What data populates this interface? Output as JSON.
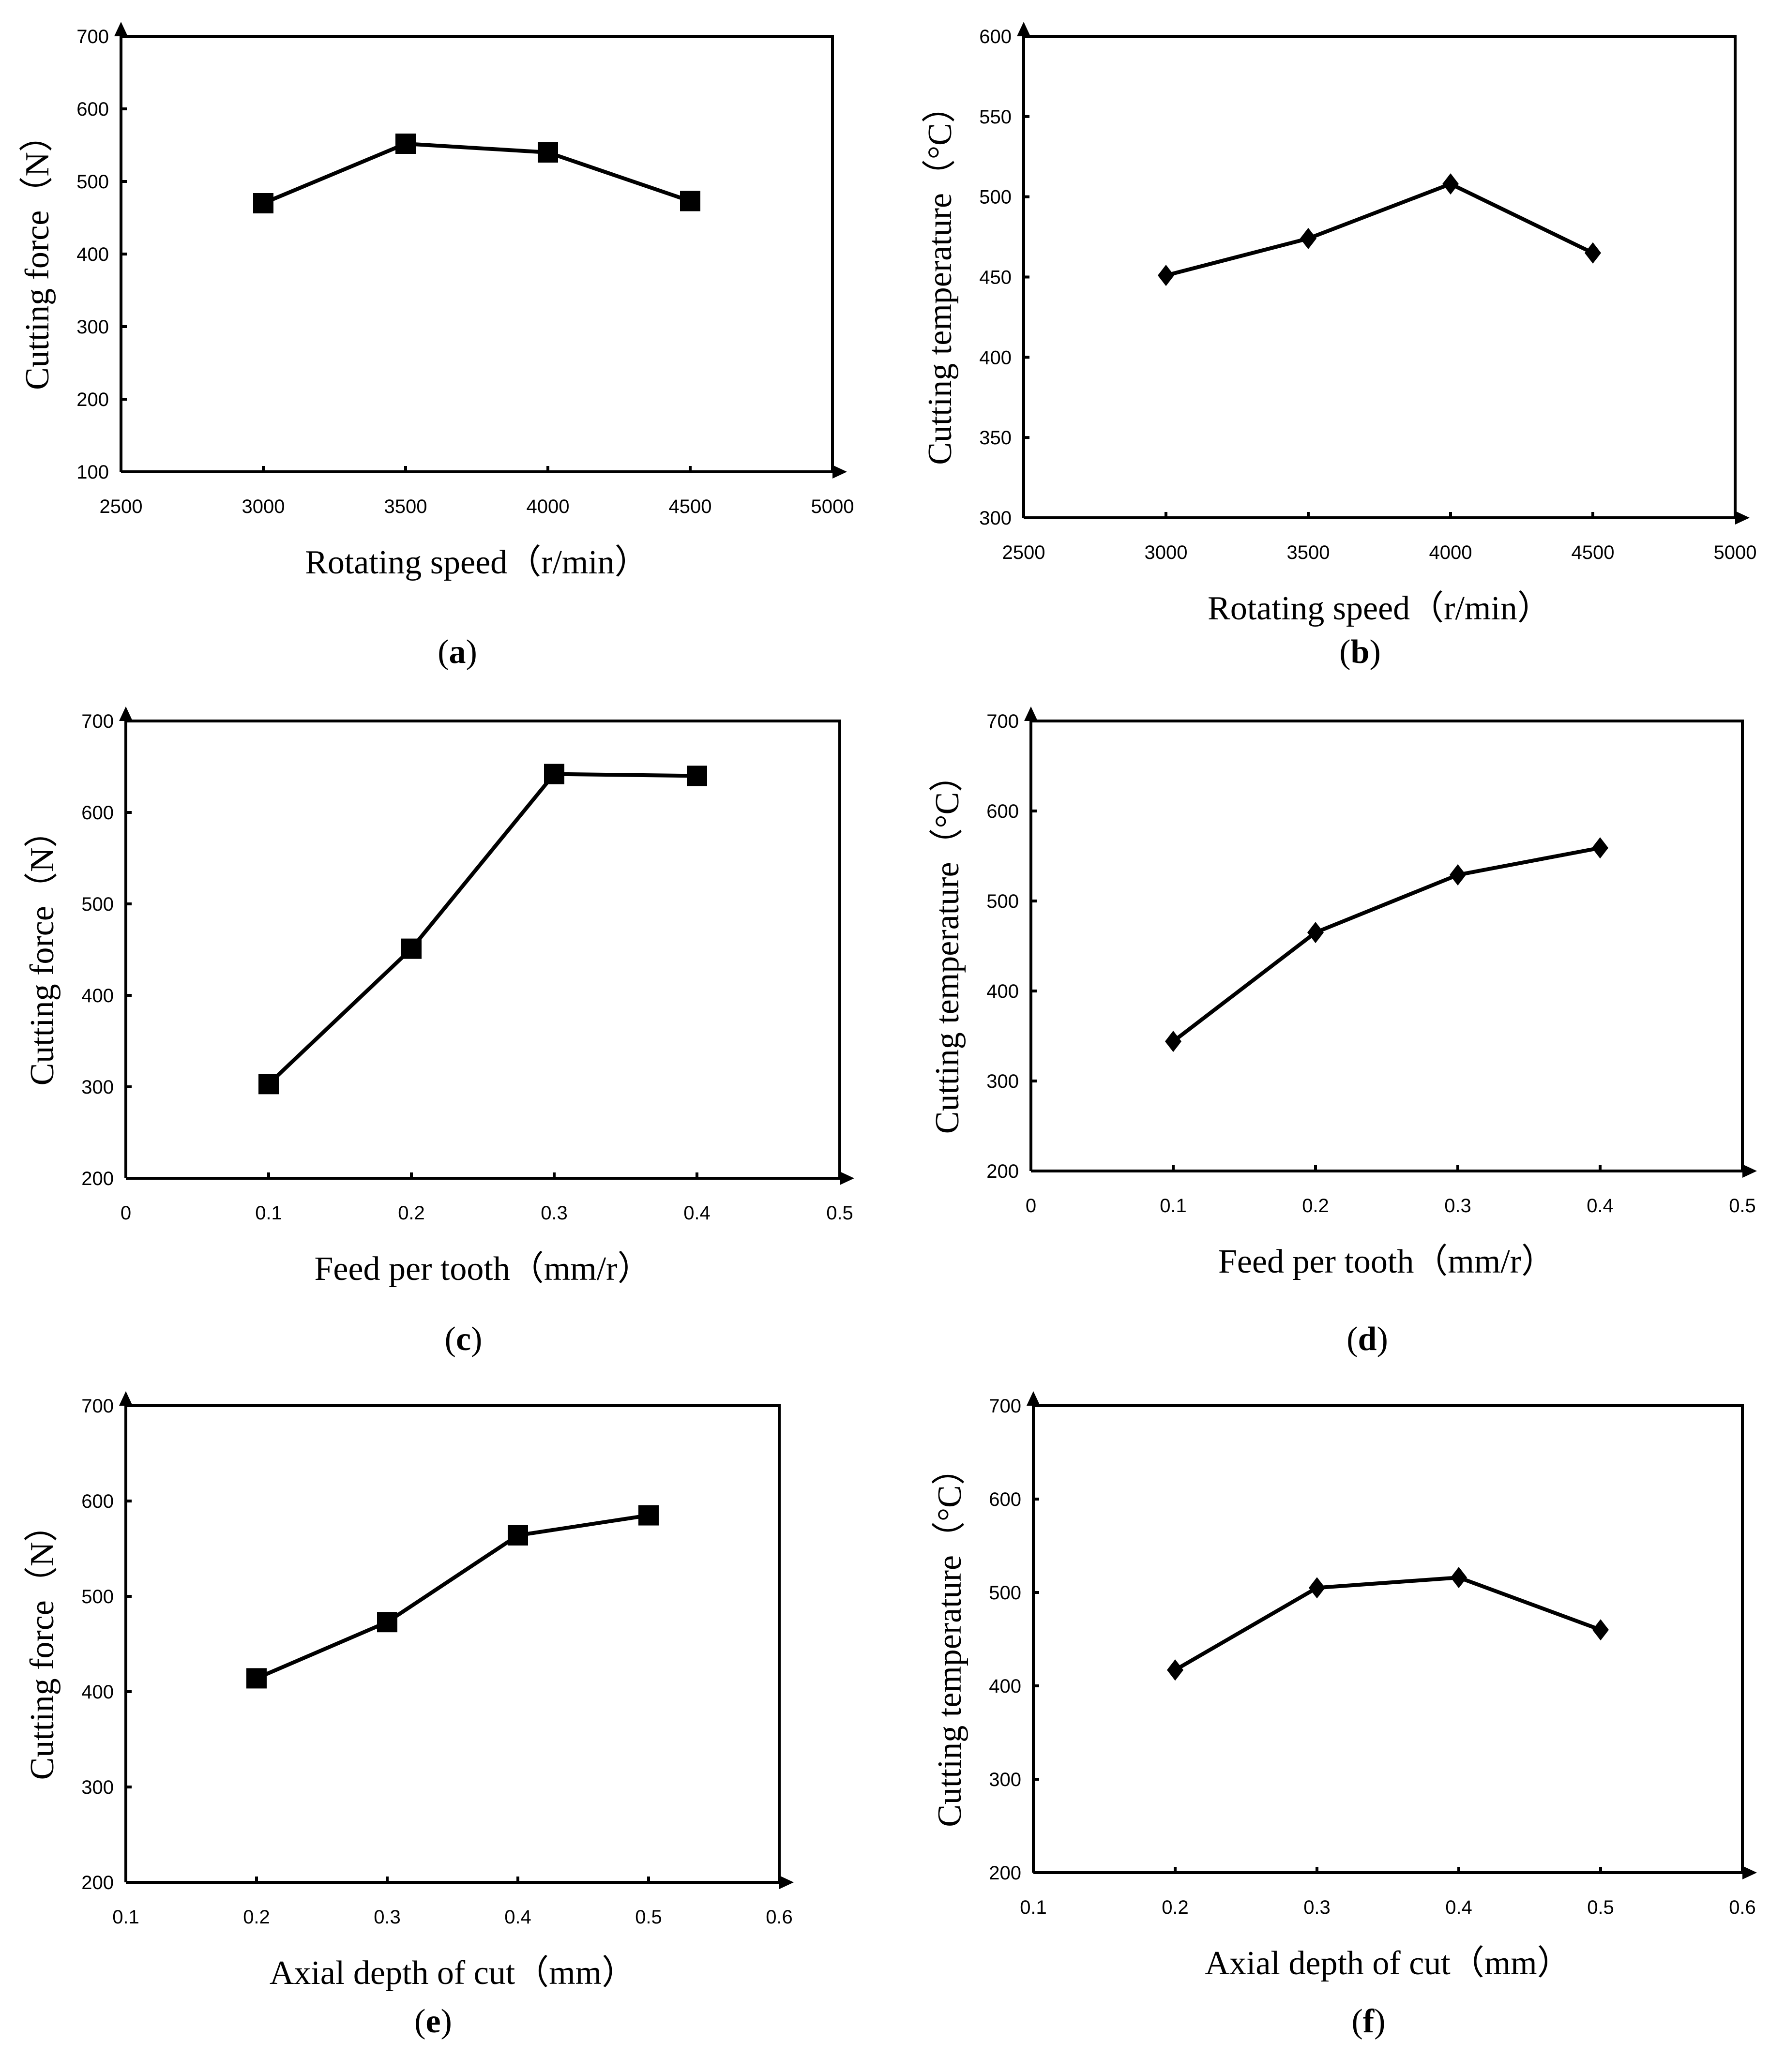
{
  "chart_data": [
    {
      "id": "a",
      "type": "line",
      "marker": "square",
      "panel_label": "a",
      "xlabel": "Rotating speed（r/min）",
      "ylabel": "Cutting force（N）",
      "xlim": [
        2500,
        5000
      ],
      "ylim": [
        100,
        700
      ],
      "x_ticks": [
        "2500",
        "3000",
        "3500",
        "4000",
        "4500",
        "5000"
      ],
      "y_ticks": [
        "100",
        "200",
        "300",
        "400",
        "500",
        "600",
        "700"
      ],
      "x": [
        3000,
        3500,
        4000,
        4500
      ],
      "values": [
        470,
        552,
        540,
        473
      ]
    },
    {
      "id": "b",
      "type": "line",
      "marker": "diamond",
      "panel_label": "b",
      "xlabel": "Rotating speed（r/min）",
      "ylabel": "Cutting temperature（°C）",
      "xlim": [
        2500,
        5000
      ],
      "ylim": [
        300,
        600
      ],
      "x_ticks": [
        "2500",
        "3000",
        "3500",
        "4000",
        "4500",
        "5000"
      ],
      "y_ticks": [
        "300",
        "350",
        "400",
        "450",
        "500",
        "550",
        "600"
      ],
      "x": [
        3000,
        3500,
        4000,
        4500
      ],
      "values": [
        451,
        474,
        508,
        465
      ]
    },
    {
      "id": "c",
      "type": "line",
      "marker": "square",
      "panel_label": "c",
      "xlabel": "Feed per tooth（mm/r）",
      "ylabel": "Cutting force（N）",
      "xlim": [
        0,
        0.5
      ],
      "ylim": [
        200,
        700
      ],
      "x_ticks": [
        "0",
        "0.1",
        "0.2",
        "0.3",
        "0.4",
        "0.5"
      ],
      "y_ticks": [
        "200",
        "300",
        "400",
        "500",
        "600",
        "700"
      ],
      "x": [
        0.1,
        0.2,
        0.3,
        0.4
      ],
      "values": [
        303,
        451,
        642,
        640
      ]
    },
    {
      "id": "d",
      "type": "line",
      "marker": "diamond",
      "panel_label": "d",
      "xlabel": "Feed per tooth（mm/r）",
      "ylabel": "Cutting temperature（°C）",
      "xlim": [
        0,
        0.5
      ],
      "ylim": [
        200,
        700
      ],
      "x_ticks": [
        "0",
        "0.1",
        "0.2",
        "0.3",
        "0.4",
        "0.5"
      ],
      "y_ticks": [
        "200",
        "300",
        "400",
        "500",
        "600",
        "700"
      ],
      "x": [
        0.1,
        0.2,
        0.3,
        0.4
      ],
      "values": [
        344,
        465,
        529,
        559
      ]
    },
    {
      "id": "e",
      "type": "line",
      "marker": "square",
      "panel_label": "e",
      "xlabel": "Axial depth of cut（mm）",
      "ylabel": "Cutting force（N）",
      "xlim": [
        0.1,
        0.6
      ],
      "ylim": [
        200,
        700
      ],
      "x_ticks": [
        "0.1",
        "0.2",
        "0.3",
        "0.4",
        "0.5",
        "0.6"
      ],
      "y_ticks": [
        "200",
        "300",
        "400",
        "500",
        "600",
        "700"
      ],
      "x": [
        0.2,
        0.3,
        0.4,
        0.5
      ],
      "values": [
        414,
        473,
        564,
        585
      ]
    },
    {
      "id": "f",
      "type": "line",
      "marker": "diamond",
      "panel_label": "f",
      "xlabel": "Axial depth of cut（mm）",
      "ylabel": "Cutting temperature（°C）",
      "xlim": [
        0.1,
        0.6
      ],
      "ylim": [
        200,
        700
      ],
      "x_ticks": [
        "0.1",
        "0.2",
        "0.3",
        "0.4",
        "0.5",
        "0.6"
      ],
      "y_ticks": [
        "200",
        "300",
        "400",
        "500",
        "600",
        "700"
      ],
      "x": [
        0.2,
        0.3,
        0.4,
        0.5
      ],
      "values": [
        417,
        505,
        516,
        460
      ]
    }
  ]
}
